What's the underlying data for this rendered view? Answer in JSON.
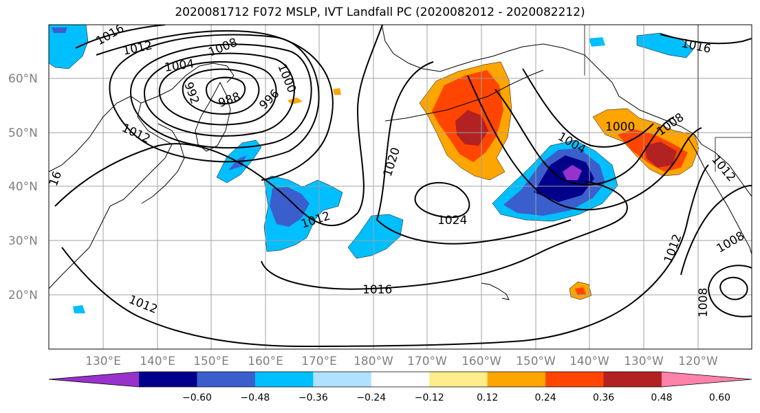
{
  "title": "2020081712 F072 MSLP, IVT Landfall PC (2020082012 - 2020082212)",
  "colors": {
    "land_coast": "#000000",
    "grid": "#a0a0a0",
    "isobar": "#000000"
  },
  "lat_labels": [
    "60°N",
    "50°N",
    "40°N",
    "30°N",
    "20°N"
  ],
  "lon_labels": [
    "130°E",
    "140°E",
    "150°E",
    "160°E",
    "170°E",
    "180°W",
    "170°W",
    "160°W",
    "150°W",
    "140°W",
    "130°W",
    "120°W"
  ],
  "colorbar": {
    "colors": [
      "#9932cc",
      "#00008b",
      "#3a5fcd",
      "#00bfff",
      "#b0e2ff",
      "#ffffff",
      "#ffec8b",
      "#ffa500",
      "#ff4500",
      "#b22222",
      "#ff82ab"
    ],
    "tick_labels": [
      "−0.60",
      "−0.48",
      "−0.36",
      "−0.24",
      "−0.12",
      "0.12",
      "0.24",
      "0.36",
      "0.48",
      "0.60"
    ]
  },
  "isobar_labels": [
    "1016",
    "1012",
    "1008",
    "1004",
    "1000",
    "996",
    "992",
    "988",
    "1012",
    "1020",
    "1024",
    "1012",
    "1016",
    "1012",
    "1004",
    "1000",
    "1008",
    "1016",
    "1012",
    "1012",
    "1008",
    "1008",
    "16"
  ]
}
